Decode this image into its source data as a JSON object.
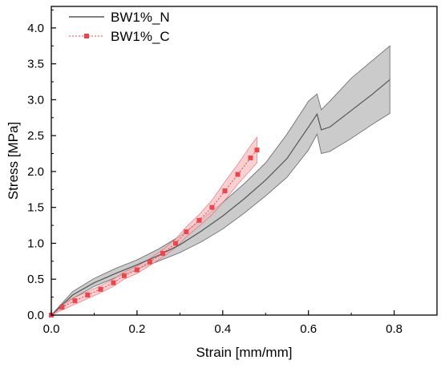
{
  "chart_data": {
    "type": "line",
    "title": "",
    "xlabel": "Strain [mm/mm]",
    "ylabel": "Stress [MPa]",
    "xlim": [
      0,
      0.9
    ],
    "ylim": [
      0,
      4.3
    ],
    "x_ticks": [
      0.0,
      0.2,
      0.4,
      0.6,
      0.8
    ],
    "x_tick_labels": [
      "0.0",
      "0.2",
      "0.4",
      "0.6",
      "0.8"
    ],
    "y_ticks": [
      0.0,
      0.5,
      1.0,
      1.5,
      2.0,
      2.5,
      3.0,
      3.5,
      4.0
    ],
    "y_tick_labels": [
      "0.0",
      "0.5",
      "1.0",
      "1.5",
      "2.0",
      "2.5",
      "3.0",
      "3.5",
      "4.0"
    ],
    "grid": false,
    "legend_position": "top-left",
    "series": [
      {
        "name": "BW1%_N",
        "style": "solid-line-with-band",
        "color": "#555555",
        "band_color": "#c8c8c8",
        "x": [
          0,
          0.05,
          0.1,
          0.15,
          0.2,
          0.25,
          0.3,
          0.35,
          0.4,
          0.45,
          0.5,
          0.55,
          0.6,
          0.62,
          0.63,
          0.65,
          0.7,
          0.75,
          0.79
        ],
        "y": [
          0,
          0.28,
          0.45,
          0.58,
          0.7,
          0.83,
          0.98,
          1.17,
          1.38,
          1.62,
          1.88,
          2.18,
          2.62,
          2.8,
          2.58,
          2.62,
          2.85,
          3.08,
          3.28
        ],
        "upper": [
          0,
          0.33,
          0.51,
          0.65,
          0.77,
          0.92,
          1.1,
          1.33,
          1.57,
          1.83,
          2.12,
          2.52,
          2.98,
          3.08,
          2.86,
          2.98,
          3.3,
          3.55,
          3.75
        ],
        "lower": [
          0,
          0.23,
          0.4,
          0.52,
          0.64,
          0.75,
          0.87,
          1.02,
          1.2,
          1.42,
          1.66,
          1.92,
          2.3,
          2.52,
          2.25,
          2.28,
          2.46,
          2.66,
          2.81
        ]
      },
      {
        "name": "BW1%_C",
        "style": "dotted-line-square-markers-with-band",
        "color": "#e8474f",
        "band_color": "#f6bcbf",
        "x": [
          0,
          0.025,
          0.055,
          0.085,
          0.115,
          0.145,
          0.17,
          0.2,
          0.23,
          0.26,
          0.29,
          0.315,
          0.345,
          0.375,
          0.405,
          0.435,
          0.465,
          0.48
        ],
        "y": [
          0,
          0.11,
          0.2,
          0.28,
          0.36,
          0.45,
          0.55,
          0.63,
          0.74,
          0.86,
          1.0,
          1.16,
          1.32,
          1.5,
          1.73,
          1.96,
          2.19,
          2.3
        ],
        "upper": [
          0,
          0.15,
          0.25,
          0.33,
          0.41,
          0.5,
          0.6,
          0.68,
          0.79,
          0.91,
          1.06,
          1.23,
          1.4,
          1.6,
          1.86,
          2.1,
          2.36,
          2.48
        ],
        "lower": [
          0,
          0.07,
          0.15,
          0.23,
          0.31,
          0.4,
          0.5,
          0.58,
          0.69,
          0.81,
          0.94,
          1.09,
          1.24,
          1.4,
          1.6,
          1.82,
          2.02,
          2.12
        ]
      }
    ]
  }
}
